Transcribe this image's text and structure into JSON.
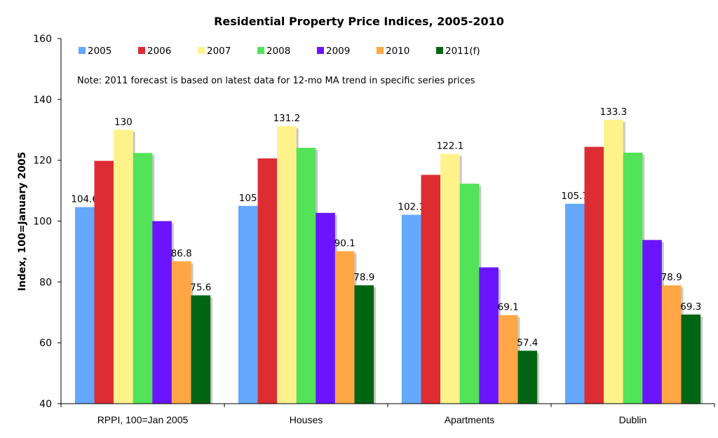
{
  "chart_data": {
    "type": "bar",
    "title": "Residential Property Price Indices, 2005-2010",
    "xlabel": "",
    "ylabel": "Index, 100=January 2005",
    "ylim": [
      40,
      160
    ],
    "yticks": [
      40,
      60,
      80,
      100,
      120,
      140,
      160
    ],
    "grid": false,
    "legend_position": "top",
    "note": "Note: 2011 forecast is based on latest data for 12-mo MA trend in specific series prices",
    "categories": [
      "RPPI, 100=Jan 2005",
      "Houses",
      "Apartments",
      "Dublin"
    ],
    "series": [
      {
        "name": "2005",
        "color": "#64a8ff",
        "values": [
          104.6,
          105,
          102.1,
          105.7
        ],
        "labels": [
          "104.6",
          "105",
          "102.1",
          "105.7"
        ]
      },
      {
        "name": "2006",
        "color": "#dd2d33",
        "values": [
          119.8,
          120.6,
          115.2,
          124.4
        ],
        "labels": [
          null,
          null,
          null,
          null
        ]
      },
      {
        "name": "2007",
        "color": "#fff28b",
        "values": [
          130,
          131.2,
          122.1,
          133.3
        ],
        "labels": [
          "130",
          "131.2",
          "122.1",
          "133.3"
        ]
      },
      {
        "name": "2008",
        "color": "#52e359",
        "values": [
          122.4,
          124.1,
          112.3,
          122.5
        ],
        "labels": [
          null,
          null,
          null,
          null
        ]
      },
      {
        "name": "2009",
        "color": "#6a14ff",
        "values": [
          100.0,
          102.7,
          84.8,
          93.8
        ],
        "labels": [
          null,
          null,
          null,
          null
        ]
      },
      {
        "name": "2010",
        "color": "#ffa646",
        "values": [
          86.8,
          90.1,
          69.1,
          78.9
        ],
        "labels": [
          "86.8",
          "90.1",
          "69.1",
          "78.9"
        ]
      },
      {
        "name": "2011(f)",
        "color": "#006614",
        "values": [
          75.6,
          78.9,
          57.4,
          69.3
        ],
        "labels": [
          "75.6",
          "78.9",
          "57.4",
          "69.3"
        ]
      }
    ]
  }
}
